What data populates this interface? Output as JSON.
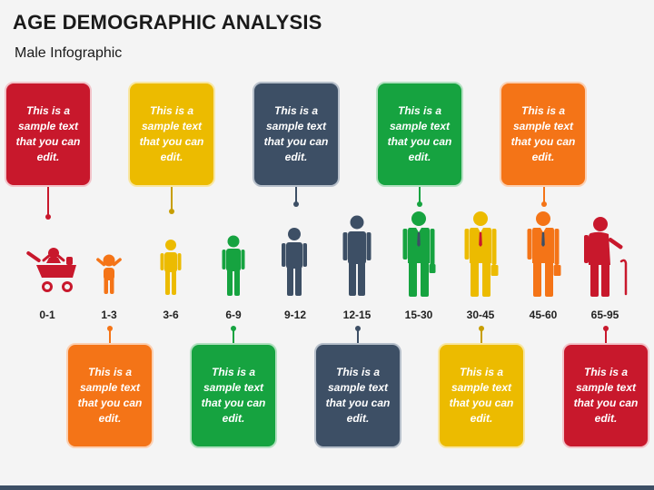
{
  "header": {
    "title": "AGE DEMOGRAPHIC ANALYSIS",
    "subtitle": "Male Infographic"
  },
  "colors": {
    "red": "#c8182c",
    "yellow": "#ecbb00",
    "navy": "#3d4f65",
    "green": "#16a340",
    "orange": "#f47417"
  },
  "age_groups": [
    "0-1",
    "1-3",
    "3-6",
    "6-9",
    "9-12",
    "12-15",
    "15-30",
    "30-45",
    "45-60",
    "65-95"
  ],
  "top_boxes": [
    {
      "age": "0-1",
      "text": "This is a sample text that you can edit."
    },
    {
      "age": "3-6",
      "text": "This is a sample text that you can edit."
    },
    {
      "age": "9-12",
      "text": "This is a sample text that you can edit."
    },
    {
      "age": "15-30",
      "text": "This is a sample text that you can edit."
    },
    {
      "age": "45-60",
      "text": "This is a sample text that you can edit."
    }
  ],
  "bottom_boxes": [
    {
      "age": "1-3",
      "text": "This is a sample text that you can edit."
    },
    {
      "age": "6-9",
      "text": "This is a sample text that you can edit."
    },
    {
      "age": "12-15",
      "text": "This is a sample text that you can edit."
    },
    {
      "age": "30-45",
      "text": "This is a sample text that you can edit."
    },
    {
      "age": "65-95",
      "text": "This is a sample text that you can edit."
    }
  ]
}
